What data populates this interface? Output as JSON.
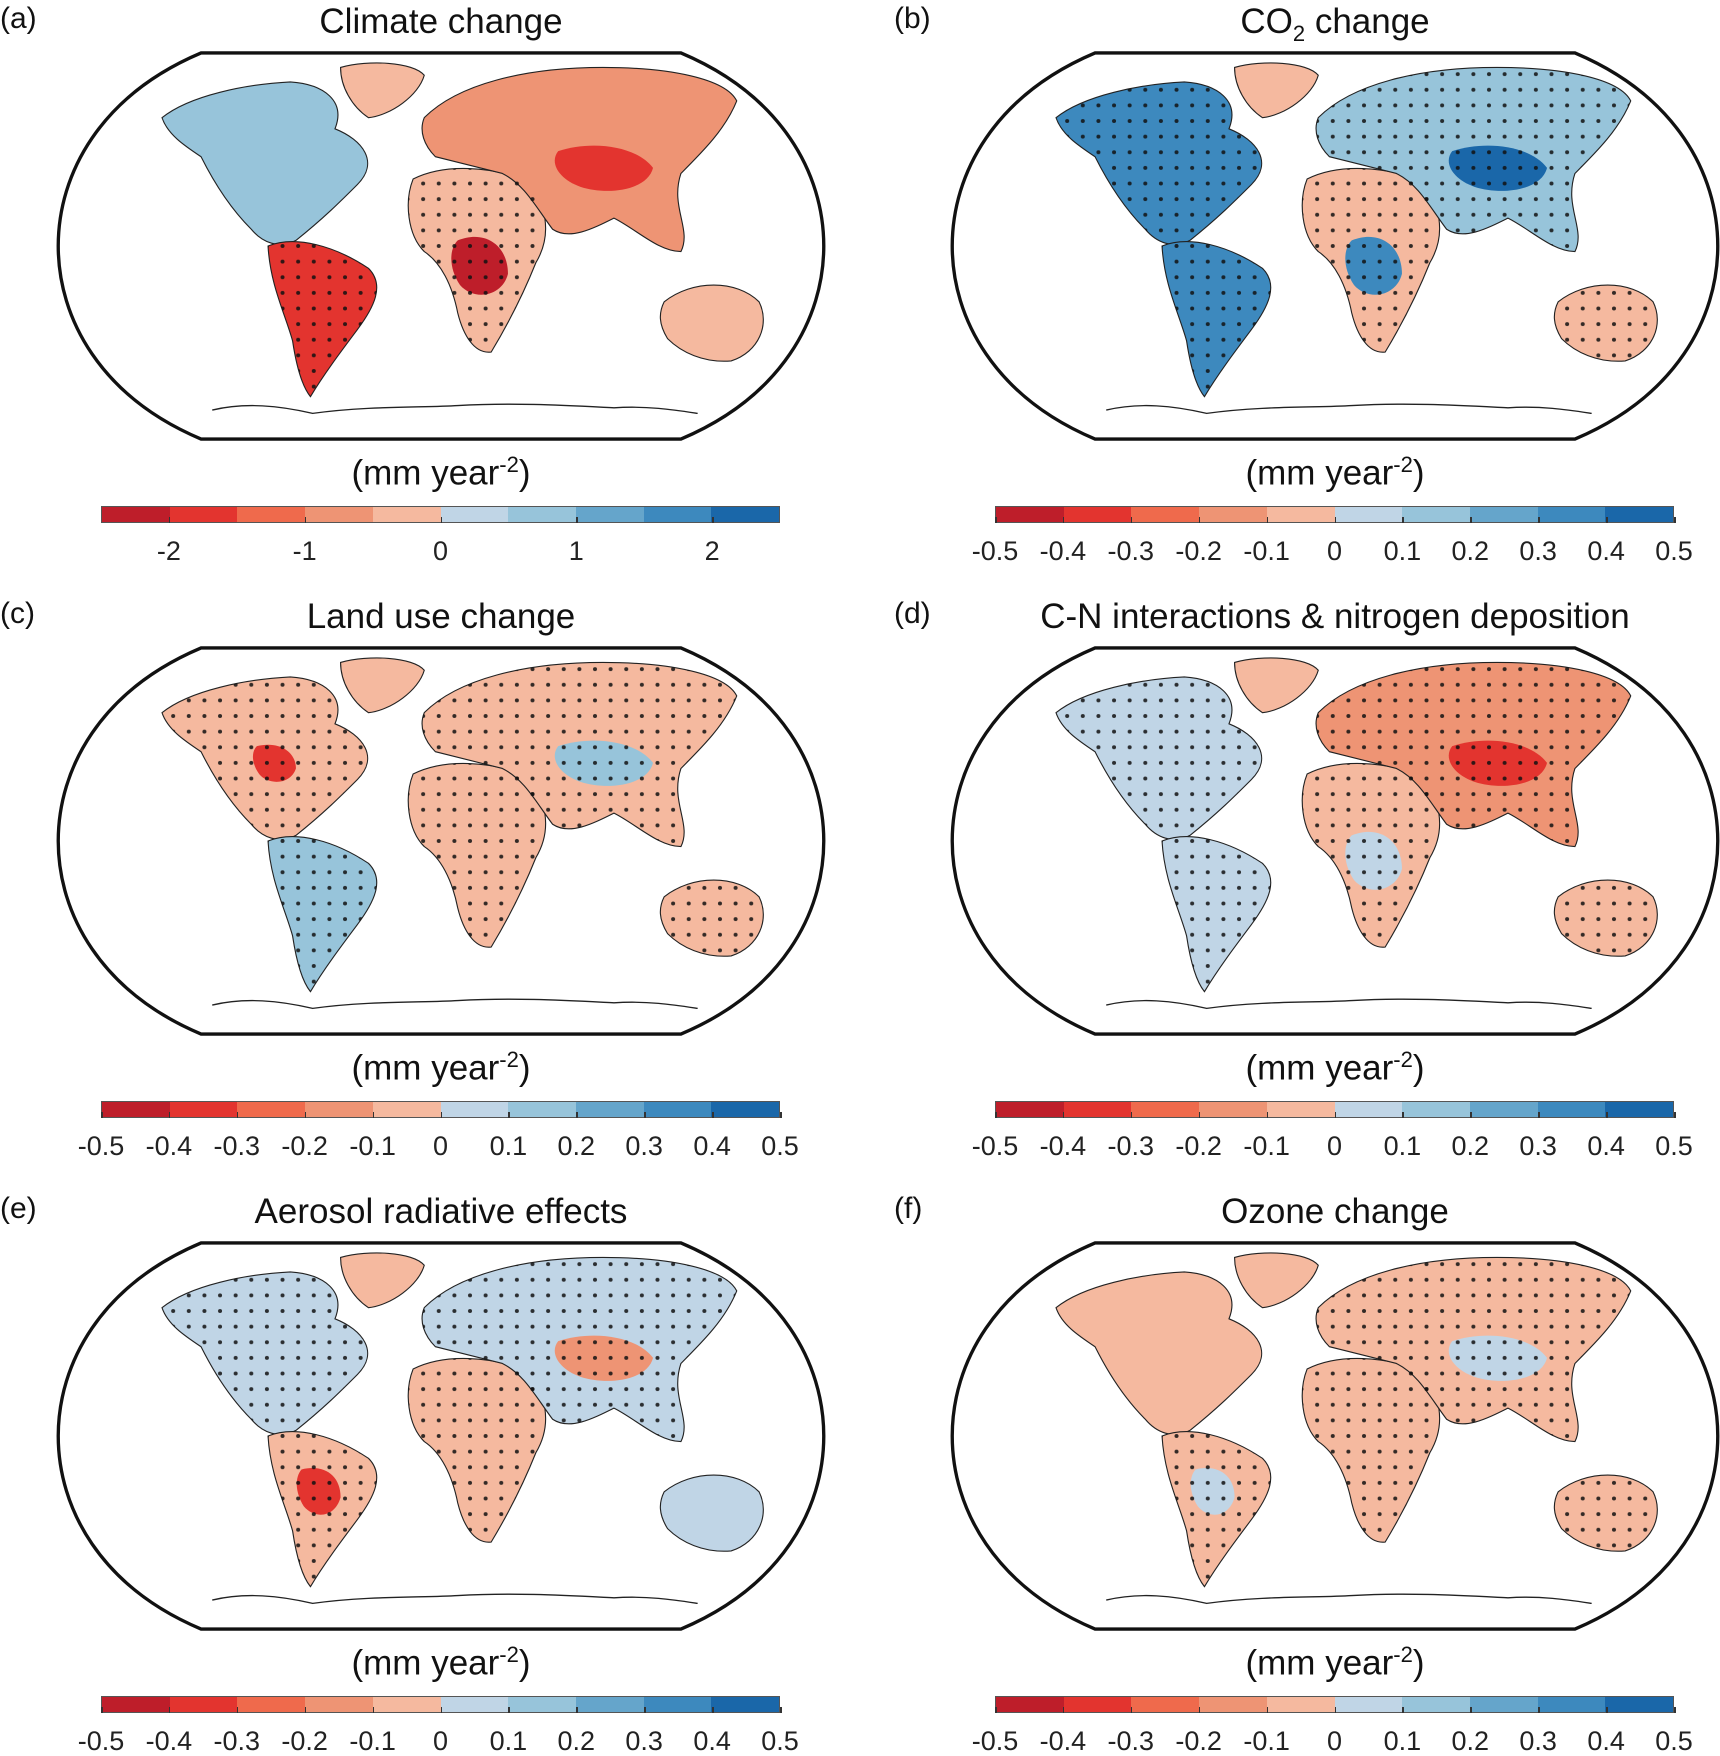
{
  "colorbar_colors": [
    "#be1e2a",
    "#e3342f",
    "#ef6a4c",
    "#ee9474",
    "#f5b99f",
    "#c0d5e6",
    "#97c4da",
    "#65a5cb",
    "#3d89be",
    "#1a67a9"
  ],
  "unit": {
    "prefix": "(mm year",
    "sup": "-2",
    "suffix": ")"
  },
  "panels": [
    {
      "label": "(a)",
      "title": "Climate change",
      "title_sub": "",
      "title_rest": "",
      "ticks": [
        "-2",
        "-1",
        "0",
        "1",
        "2"
      ],
      "tick_positions": [
        1,
        3,
        5,
        7,
        9
      ],
      "regions": {
        "na": "#97c4da",
        "greenland": "#f5b99f",
        "sa": "#e3342f",
        "africa": "#f5b99f",
        "eurasia": "#ee9474",
        "australia": "#f5b99f"
      },
      "hotspots": [
        [
          "africa",
          "#be1e2a"
        ],
        [
          "eurasia",
          "#e3342f"
        ]
      ],
      "dots": [
        "sa",
        "africa"
      ]
    },
    {
      "label": "(b)",
      "title": "CO",
      "title_sub": "2",
      "title_rest": " change",
      "ticks": [
        "-0.5",
        "-0.4",
        "-0.3",
        "-0.2",
        "-0.1",
        "0",
        "0.1",
        "0.2",
        "0.3",
        "0.4",
        "0.5"
      ],
      "tick_positions": [
        0,
        1,
        2,
        3,
        4,
        5,
        6,
        7,
        8,
        9,
        10
      ],
      "regions": {
        "na": "#3d89be",
        "greenland": "#f5b99f",
        "sa": "#3d89be",
        "africa": "#f5b99f",
        "eurasia": "#97c4da",
        "australia": "#f5b99f"
      },
      "hotspots": [
        [
          "africa",
          "#3d89be"
        ],
        [
          "eurasia",
          "#1a67a9"
        ]
      ],
      "dots": [
        "na",
        "sa",
        "africa",
        "eurasia",
        "australia"
      ]
    },
    {
      "label": "(c)",
      "title": "Land use change",
      "title_sub": "",
      "title_rest": "",
      "ticks": [
        "-0.5",
        "-0.4",
        "-0.3",
        "-0.2",
        "-0.1",
        "0",
        "0.1",
        "0.2",
        "0.3",
        "0.4",
        "0.5"
      ],
      "tick_positions": [
        0,
        1,
        2,
        3,
        4,
        5,
        6,
        7,
        8,
        9,
        10
      ],
      "regions": {
        "na": "#f5b99f",
        "greenland": "#f5b99f",
        "sa": "#97c4da",
        "africa": "#f5b99f",
        "eurasia": "#f5b99f",
        "australia": "#f5b99f"
      },
      "hotspots": [
        [
          "eurasia",
          "#97c4da"
        ],
        [
          "na",
          "#e3342f"
        ]
      ],
      "dots": [
        "na",
        "sa",
        "africa",
        "eurasia",
        "australia"
      ]
    },
    {
      "label": "(d)",
      "title": "C-N interactions & nitrogen deposition",
      "title_sub": "",
      "title_rest": "",
      "ticks": [
        "-0.5",
        "-0.4",
        "-0.3",
        "-0.2",
        "-0.1",
        "0",
        "0.1",
        "0.2",
        "0.3",
        "0.4",
        "0.5"
      ],
      "tick_positions": [
        0,
        1,
        2,
        3,
        4,
        5,
        6,
        7,
        8,
        9,
        10
      ],
      "regions": {
        "na": "#c0d5e6",
        "greenland": "#f5b99f",
        "sa": "#c0d5e6",
        "africa": "#f5b99f",
        "eurasia": "#ee9474",
        "australia": "#f5b99f"
      },
      "hotspots": [
        [
          "eurasia",
          "#e3342f"
        ],
        [
          "africa",
          "#c0d5e6"
        ]
      ],
      "dots": [
        "na",
        "sa",
        "africa",
        "eurasia",
        "australia"
      ]
    },
    {
      "label": "(e)",
      "title": "Aerosol radiative effects",
      "title_sub": "",
      "title_rest": "",
      "ticks": [
        "-0.5",
        "-0.4",
        "-0.3",
        "-0.2",
        "-0.1",
        "0",
        "0.1",
        "0.2",
        "0.3",
        "0.4",
        "0.5"
      ],
      "tick_positions": [
        0,
        1,
        2,
        3,
        4,
        5,
        6,
        7,
        8,
        9,
        10
      ],
      "regions": {
        "na": "#c0d5e6",
        "greenland": "#f5b99f",
        "sa": "#f5b99f",
        "africa": "#f5b99f",
        "eurasia": "#c0d5e6",
        "australia": "#c0d5e6"
      },
      "hotspots": [
        [
          "eurasia",
          "#ee9474"
        ],
        [
          "sa",
          "#e3342f"
        ]
      ],
      "dots": [
        "na",
        "sa",
        "africa",
        "eurasia"
      ]
    },
    {
      "label": "(f)",
      "title": "Ozone change",
      "title_sub": "",
      "title_rest": "",
      "ticks": [
        "-0.5",
        "-0.4",
        "-0.3",
        "-0.2",
        "-0.1",
        "0",
        "0.1",
        "0.2",
        "0.3",
        "0.4",
        "0.5"
      ],
      "tick_positions": [
        0,
        1,
        2,
        3,
        4,
        5,
        6,
        7,
        8,
        9,
        10
      ],
      "regions": {
        "na": "#f5b99f",
        "greenland": "#f5b99f",
        "sa": "#f5b99f",
        "africa": "#f5b99f",
        "eurasia": "#f5b99f",
        "australia": "#f5b99f"
      },
      "hotspots": [
        [
          "eurasia",
          "#c0d5e6"
        ],
        [
          "sa",
          "#c0d5e6"
        ]
      ],
      "dots": [
        "sa",
        "africa",
        "eurasia",
        "australia"
      ]
    }
  ]
}
